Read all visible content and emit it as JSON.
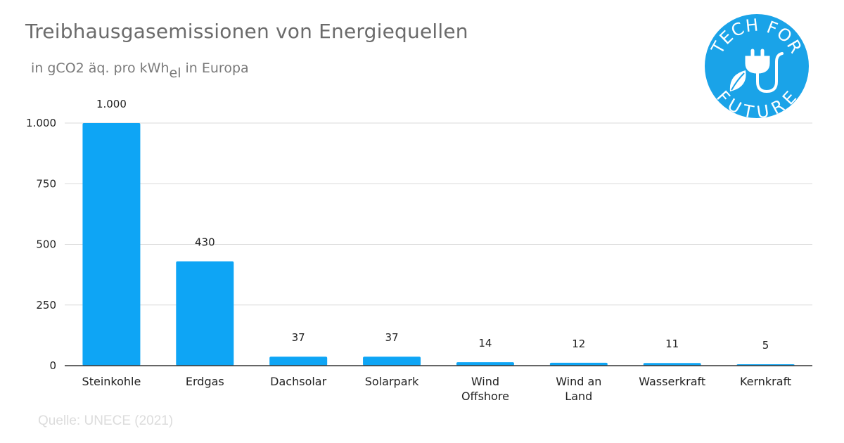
{
  "title": "Treibhausgasemissionen von Energiequellen",
  "subtitle": {
    "prefix": "in gCO2 äq. pro kWh",
    "subscript": "el",
    "suffix": " in Europa"
  },
  "source": "Quelle: UNECE (2021)",
  "logo": {
    "top_text": "TECH FOR",
    "bottom_text": "FUTURE",
    "color": "#1aa3e8"
  },
  "chart_data": {
    "type": "bar",
    "categories": [
      [
        "Steinkohle"
      ],
      [
        "Erdgas"
      ],
      [
        "Dachsolar"
      ],
      [
        "Solarpark"
      ],
      [
        "Wind",
        "Offshore"
      ],
      [
        "Wind an",
        "Land"
      ],
      [
        "Wasserkraft"
      ],
      [
        "Kernkraft"
      ]
    ],
    "values": [
      1000,
      430,
      37,
      37,
      14,
      12,
      11,
      5
    ],
    "value_labels": [
      "1.000",
      "430",
      "37",
      "37",
      "14",
      "12",
      "11",
      "5"
    ],
    "ylim": [
      0,
      1000
    ],
    "yticks": [
      0,
      250,
      500,
      750,
      1000
    ],
    "ytick_labels": [
      "0",
      "250",
      "500",
      "750",
      "1.000"
    ],
    "grid": true,
    "bar_color": "#0ea5f5",
    "grid_color": "#d9d9d9",
    "axis_color": "#333333"
  }
}
